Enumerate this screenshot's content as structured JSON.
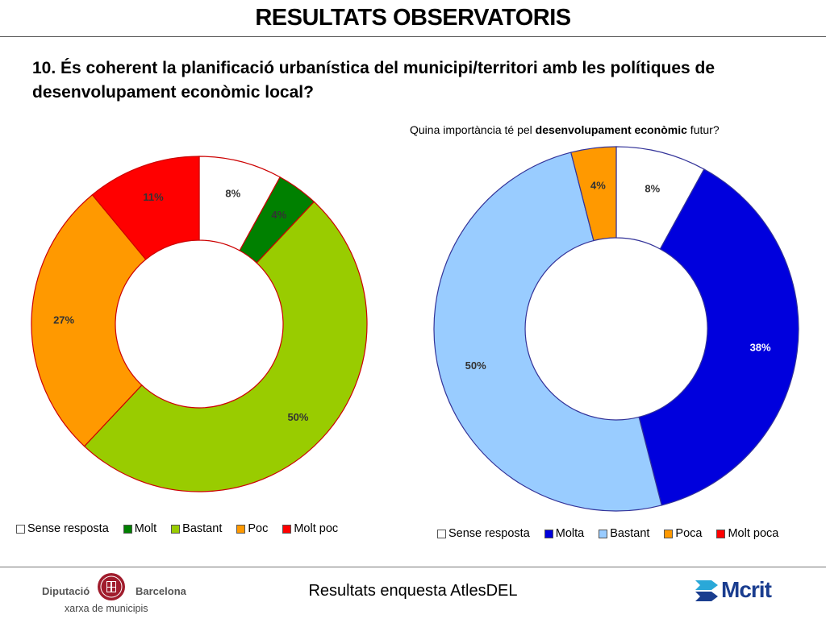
{
  "header": {
    "title": "RESULTATS OBSERVATORIS"
  },
  "question": "10. És coherent la planificació urbanística del municipi/territori amb les polítiques de desenvolupament econòmic local?",
  "subtitle": {
    "pre": "Quina importància té pel ",
    "bold": "desenvolupament econòmic",
    "post": " futur?"
  },
  "footer": {
    "text": "Resultats enquesta AtlesDEL",
    "logo_left": {
      "word1": "Diputació",
      "word2": "Barcelona",
      "word3": "xarxa de municipis",
      "emblem": "seal-icon"
    },
    "logo_right": {
      "word": "Mcrit",
      "emblem": "arrows-icon"
    }
  },
  "chart_data": [
    {
      "type": "pie",
      "subtype": "donut",
      "title": "",
      "categories": [
        "Sense resposta",
        "Molt",
        "Bastant",
        "Poc",
        "Molt poc"
      ],
      "values": [
        8,
        4,
        50,
        27,
        11
      ],
      "labels": [
        "8%",
        "4%",
        "50%",
        "27%",
        "11%"
      ],
      "colors": [
        "#ffffff",
        "#008000",
        "#99cc00",
        "#ff9900",
        "#ff0000"
      ],
      "edge_color": "#cc0000",
      "legend": "bottom"
    },
    {
      "type": "pie",
      "subtype": "donut",
      "title": "Quina importància té pel desenvolupament econòmic futur?",
      "categories": [
        "Sense resposta",
        "Molta",
        "Bastant",
        "Poca",
        "Molt poca"
      ],
      "values": [
        8,
        38,
        50,
        4,
        0
      ],
      "labels": [
        "8%",
        "38%",
        "50%",
        "4%",
        ""
      ],
      "colors": [
        "#ffffff",
        "#0000dd",
        "#99ccff",
        "#ff9900",
        "#ff0000"
      ],
      "edge_color": "#333399",
      "legend": "bottom"
    }
  ]
}
